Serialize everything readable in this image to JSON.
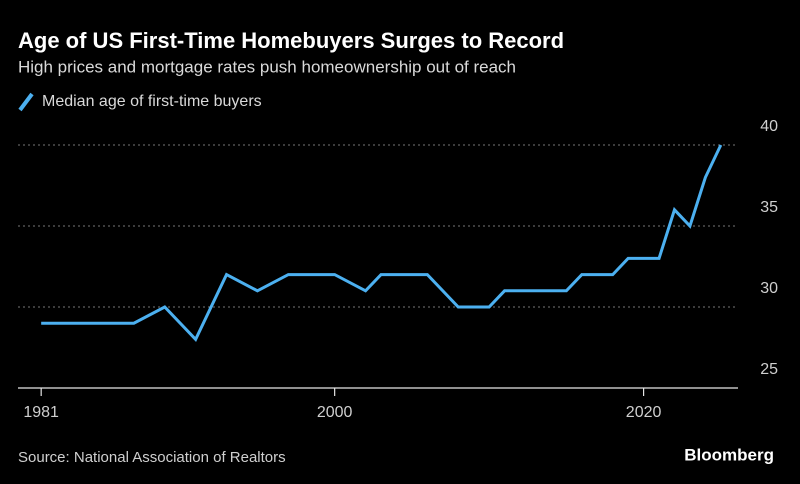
{
  "chart_data": {
    "type": "line",
    "title": "Age of US First-Time Homebuyers Surges to Record",
    "subtitle": "High prices and mortgage rates push homeownership out of reach",
    "source": "Source: National Association of Realtors",
    "brand": "Bloomberg",
    "x": [
      1981,
      1987,
      1989,
      1991,
      1993,
      1995,
      1997,
      2000,
      2002,
      2003,
      2006,
      2008,
      2010,
      2011,
      2015,
      2016,
      2018,
      2019,
      2021,
      2022,
      2023,
      2024,
      2025
    ],
    "series": [
      {
        "name": "Median age of first-time buyers",
        "color": "#4cb0f0",
        "values": [
          29,
          29,
          30,
          28,
          32,
          31,
          32,
          32,
          31,
          32,
          32,
          30,
          30,
          31,
          31,
          32,
          32,
          33,
          33,
          36,
          35,
          38,
          40
        ]
      }
    ],
    "xlim": [
      1979.5,
      2026.5
    ],
    "xticks": [
      1981,
      2000,
      2020
    ],
    "ylim": [
      25,
      40
    ],
    "yticks": [
      25,
      30,
      35,
      40
    ],
    "grid": true
  }
}
